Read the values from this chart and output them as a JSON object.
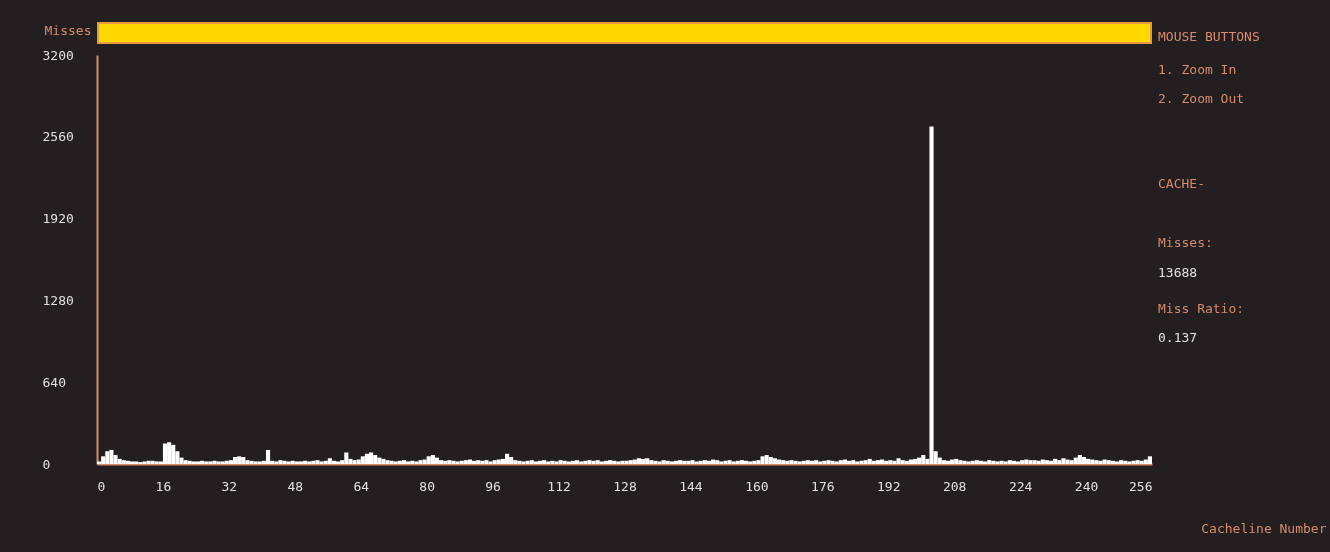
{
  "chart_data": {
    "type": "histogram",
    "ylabel": "Misses",
    "xlabel": "Cacheline Number",
    "color": "#ffffff",
    "bins": [
      0,
      1,
      2,
      3,
      4,
      5,
      6,
      7,
      8,
      9,
      10,
      11,
      12,
      13,
      14,
      15,
      16,
      17,
      18,
      19,
      20,
      21,
      22,
      23,
      24,
      25,
      26,
      27,
      28,
      29,
      30,
      31,
      32,
      33,
      34,
      35,
      36,
      37,
      38,
      39,
      40,
      41,
      42,
      43,
      44,
      45,
      46,
      47,
      48,
      49,
      50,
      51,
      52,
      53,
      54,
      55,
      56,
      57,
      58,
      59,
      60,
      61,
      62,
      63,
      64,
      65,
      66,
      67,
      68,
      69,
      70,
      71,
      72,
      73,
      74,
      75,
      76,
      77,
      78,
      79,
      80,
      81,
      82,
      83,
      84,
      85,
      86,
      87,
      88,
      89,
      90,
      91,
      92,
      93,
      94,
      95,
      96,
      97,
      98,
      99,
      100,
      101,
      102,
      103,
      104,
      105,
      106,
      107,
      108,
      109,
      110,
      111,
      112,
      113,
      114,
      115,
      116,
      117,
      118,
      119,
      120,
      121,
      122,
      123,
      124,
      125,
      126,
      127,
      128,
      129,
      130,
      131,
      132,
      133,
      134,
      135,
      136,
      137,
      138,
      139,
      140,
      141,
      142,
      143,
      144,
      145,
      146,
      147,
      148,
      149,
      150,
      151,
      152,
      153,
      154,
      155,
      156,
      157,
      158,
      159,
      160,
      161,
      162,
      163,
      164,
      165,
      166,
      167,
      168,
      169,
      170,
      171,
      172,
      173,
      174,
      175,
      176,
      177,
      178,
      179,
      180,
      181,
      182,
      183,
      184,
      185,
      186,
      187,
      188,
      189,
      190,
      191,
      192,
      193,
      194,
      195,
      196,
      197,
      198,
      199,
      200,
      201,
      202,
      203,
      204,
      205,
      206,
      207,
      208,
      209,
      210,
      211,
      212,
      213,
      214,
      215,
      216,
      217,
      218,
      219,
      220,
      221,
      222,
      223,
      224,
      225,
      226,
      227,
      228,
      229,
      230,
      231,
      232,
      233,
      234,
      235,
      236,
      237,
      238,
      239,
      240,
      241,
      242,
      243,
      244,
      245,
      246,
      247,
      248,
      249,
      250,
      251,
      252,
      253,
      254,
      255,
      256
    ],
    "values": [
      20,
      60,
      100,
      110,
      70,
      40,
      30,
      25,
      20,
      20,
      15,
      20,
      25,
      25,
      20,
      20,
      160,
      170,
      150,
      100,
      50,
      30,
      25,
      20,
      20,
      25,
      20,
      20,
      25,
      20,
      20,
      25,
      30,
      55,
      60,
      55,
      30,
      25,
      20,
      20,
      25,
      110,
      25,
      20,
      30,
      25,
      20,
      25,
      20,
      20,
      25,
      20,
      25,
      30,
      20,
      25,
      45,
      25,
      20,
      30,
      90,
      40,
      30,
      35,
      60,
      80,
      90,
      70,
      50,
      40,
      30,
      25,
      20,
      25,
      30,
      20,
      25,
      20,
      30,
      35,
      60,
      70,
      50,
      30,
      25,
      30,
      25,
      20,
      25,
      30,
      35,
      25,
      30,
      25,
      30,
      20,
      30,
      35,
      40,
      80,
      55,
      30,
      25,
      20,
      25,
      30,
      20,
      25,
      30,
      20,
      25,
      20,
      30,
      25,
      20,
      25,
      30,
      20,
      25,
      30,
      25,
      30,
      20,
      25,
      30,
      25,
      20,
      25,
      25,
      30,
      35,
      45,
      40,
      45,
      30,
      25,
      20,
      30,
      25,
      20,
      25,
      30,
      25,
      25,
      30,
      20,
      25,
      30,
      25,
      35,
      30,
      20,
      25,
      30,
      20,
      25,
      30,
      25,
      20,
      25,
      30,
      60,
      70,
      55,
      45,
      35,
      30,
      25,
      30,
      25,
      20,
      25,
      30,
      25,
      30,
      20,
      25,
      30,
      25,
      20,
      30,
      35,
      25,
      30,
      20,
      25,
      30,
      40,
      25,
      30,
      35,
      25,
      30,
      25,
      45,
      30,
      25,
      35,
      40,
      50,
      70,
      40,
      2640,
      100,
      50,
      30,
      25,
      35,
      40,
      30,
      25,
      20,
      25,
      30,
      25,
      20,
      30,
      25,
      20,
      25,
      20,
      30,
      25,
      20,
      30,
      35,
      30,
      30,
      25,
      35,
      30,
      25,
      40,
      30,
      45,
      35,
      30,
      50,
      70,
      55,
      40,
      35,
      30,
      25,
      35,
      30,
      25,
      20,
      30,
      25,
      20,
      25,
      30,
      25,
      35,
      60
    ],
    "xlim": [
      0,
      256
    ],
    "xticks": [
      0,
      16,
      32,
      48,
      64,
      80,
      96,
      112,
      128,
      144,
      160,
      176,
      192,
      208,
      224,
      240,
      256
    ],
    "ylim": [
      0,
      3200
    ],
    "yticks": [
      0,
      640,
      1280,
      1920,
      2560,
      3200
    ],
    "annotations": [
      "MOUSE BUTTONS",
      "1. Zoom In",
      "2. Zoom Out",
      "CACHE-",
      "Misses:",
      "13688",
      "Miss Ratio:",
      "0.137"
    ]
  }
}
